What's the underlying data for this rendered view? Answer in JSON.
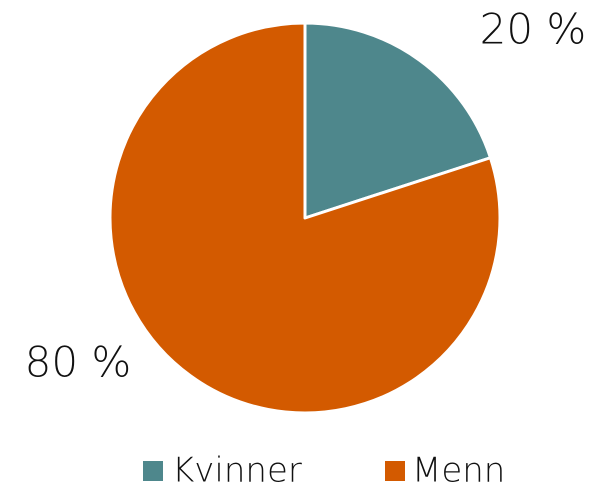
{
  "chart_data": {
    "type": "pie",
    "categories": [
      "Kvinner",
      "Menn"
    ],
    "values": [
      20,
      80
    ],
    "value_labels": [
      "20 %",
      "80 %"
    ],
    "colors": [
      "#4e878c",
      "#d35a00"
    ],
    "legend": "bottom"
  }
}
